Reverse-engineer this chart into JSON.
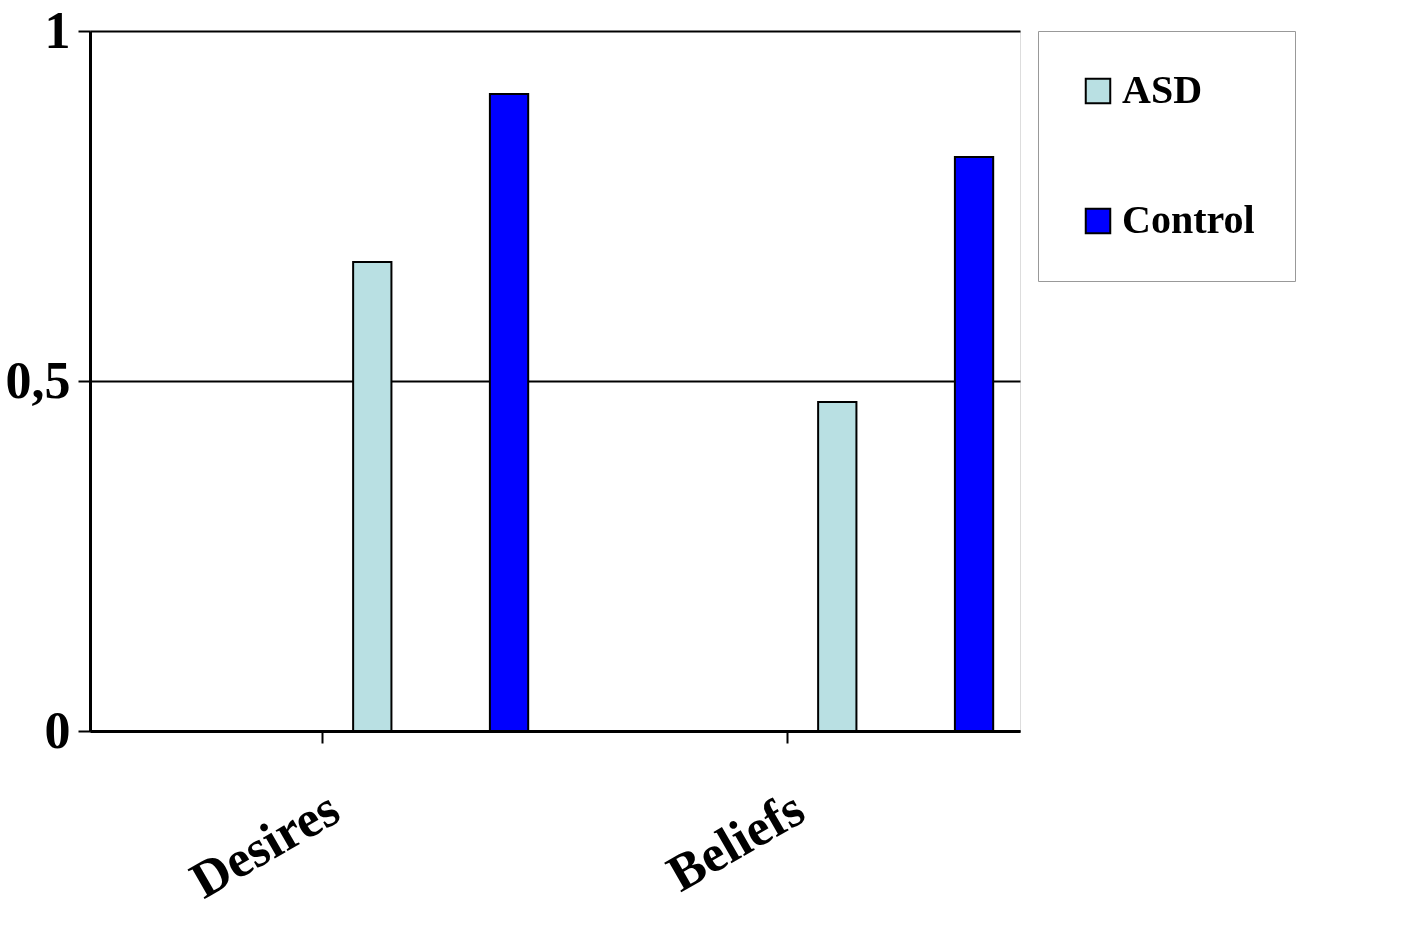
{
  "chart_data": {
    "type": "bar",
    "categories": [
      "Desires",
      "Beliefs"
    ],
    "series": [
      {
        "name": "ASD",
        "color": "#b9e0e3",
        "values": [
          0.67,
          0.47
        ]
      },
      {
        "name": "Control",
        "color": "#0000ff",
        "values": [
          0.91,
          0.82
        ]
      }
    ],
    "ylim": [
      0,
      1
    ],
    "yticks": [
      0,
      {
        "value": 0.5,
        "label": "0,5"
      },
      1
    ],
    "grid": "y",
    "legend": "right"
  }
}
